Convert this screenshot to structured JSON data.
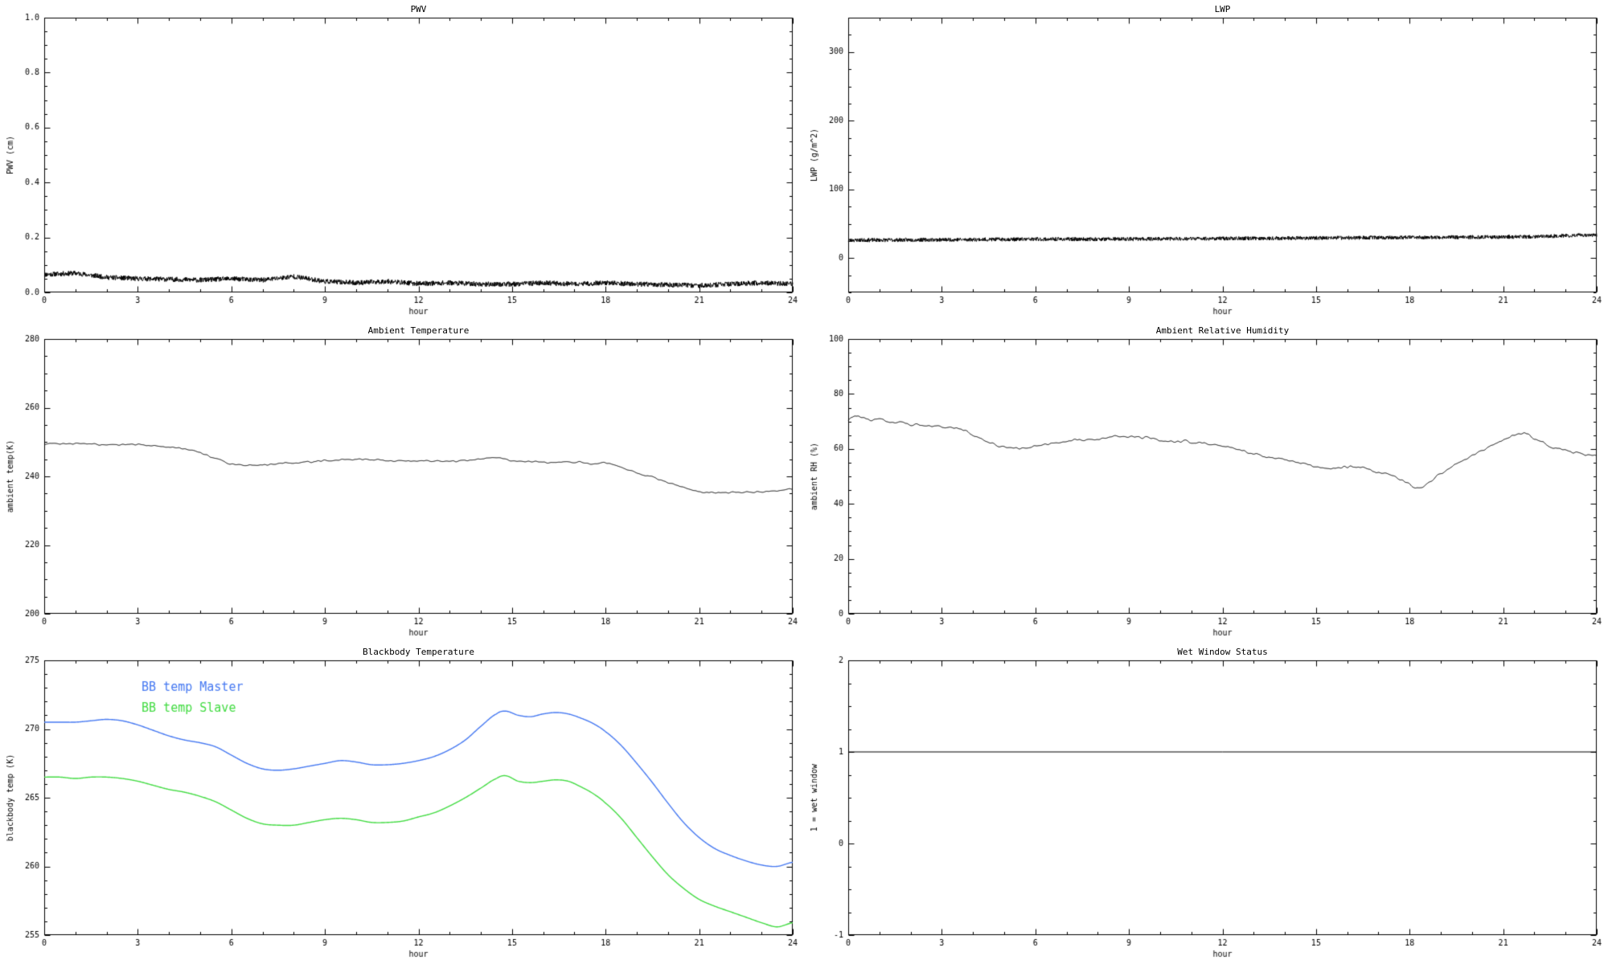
{
  "page": {
    "background": "#ffffff",
    "axis_color": "#000000"
  },
  "chart_data": [
    {
      "id": "pwv",
      "type": "line",
      "title": "PWV",
      "xlabel": "hour",
      "ylabel": "PWV (cm)",
      "xlim": [
        0,
        24
      ],
      "ylim": [
        0.0,
        1.0
      ],
      "xticks": [
        0,
        3,
        6,
        9,
        12,
        15,
        18,
        21,
        24
      ],
      "xtick_labels": [
        "0",
        "3",
        "6",
        "9",
        "12",
        "15",
        "18",
        "21",
        "24"
      ],
      "yticks": [
        0.0,
        0.2,
        0.4,
        0.6,
        0.8,
        1.0
      ],
      "ytick_labels": [
        "0.0",
        "0.2",
        "0.4",
        "0.6",
        "0.8",
        "1.0"
      ],
      "xminor_step": 1,
      "yminor_step": 0.05,
      "series": [
        {
          "name": "PWV",
          "color": "#000000",
          "width": 1,
          "seed": 11,
          "samples": 2400,
          "noise": 0.009,
          "noise_smooth": 0,
          "smooth_curve": false,
          "cx": [
            0,
            1,
            2,
            3,
            4,
            5,
            6,
            7,
            8,
            9,
            10,
            11,
            12,
            13,
            14,
            15,
            16,
            17,
            18,
            19,
            20,
            21,
            22,
            23,
            24
          ],
          "cy": [
            0.065,
            0.07,
            0.055,
            0.05,
            0.048,
            0.045,
            0.05,
            0.045,
            0.058,
            0.04,
            0.035,
            0.04,
            0.032,
            0.035,
            0.03,
            0.03,
            0.035,
            0.03,
            0.035,
            0.03,
            0.028,
            0.025,
            0.03,
            0.035,
            0.03
          ]
        }
      ]
    },
    {
      "id": "lwp",
      "type": "line",
      "title": "LWP",
      "xlabel": "hour",
      "ylabel": "LWP (g/m^2)",
      "xlim": [
        0,
        24
      ],
      "ylim": [
        -50,
        350
      ],
      "xticks": [
        0,
        3,
        6,
        9,
        12,
        15,
        18,
        21,
        24
      ],
      "xtick_labels": [
        "0",
        "3",
        "6",
        "9",
        "12",
        "15",
        "18",
        "21",
        "24"
      ],
      "yticks": [
        0,
        100,
        200,
        300
      ],
      "ytick_labels": [
        "0",
        "100",
        "200",
        "300"
      ],
      "xminor_step": 1,
      "yminor_step": 25,
      "series": [
        {
          "name": "LWP",
          "color": "#000000",
          "width": 1,
          "seed": 23,
          "samples": 2400,
          "noise": 2.8,
          "noise_smooth": 0,
          "smooth_curve": false,
          "cx": [
            0,
            2,
            4,
            6,
            8,
            10,
            12,
            14,
            16,
            18,
            20,
            22,
            24
          ],
          "cy": [
            26,
            26.5,
            27,
            27.5,
            27.5,
            28,
            28.5,
            29,
            29.5,
            30,
            30.5,
            31,
            34
          ]
        }
      ]
    },
    {
      "id": "ambient-temperature",
      "type": "line",
      "title": "Ambient Temperature",
      "xlabel": "hour",
      "ylabel": "ambient temp(K)",
      "xlim": [
        0,
        24
      ],
      "ylim": [
        200,
        280
      ],
      "xticks": [
        0,
        3,
        6,
        9,
        12,
        15,
        18,
        21,
        24
      ],
      "xtick_labels": [
        "0",
        "3",
        "6",
        "9",
        "12",
        "15",
        "18",
        "21",
        "24"
      ],
      "yticks": [
        200,
        220,
        240,
        260,
        280
      ],
      "ytick_labels": [
        "200",
        "220",
        "240",
        "260",
        "280"
      ],
      "xminor_step": 1,
      "yminor_step": 5,
      "series": [
        {
          "name": "ambient temp",
          "color": "#000000",
          "width": 1,
          "seed": 31,
          "samples": 1600,
          "noise": 0.6,
          "noise_smooth": 12,
          "smooth_curve": true,
          "cx": [
            0,
            1,
            2,
            3,
            4,
            4.5,
            5,
            5.5,
            6,
            6.5,
            7,
            8,
            9,
            10,
            11,
            12,
            13,
            14,
            14.5,
            15,
            16,
            17,
            17.5,
            18,
            18.5,
            19,
            19.5,
            20,
            20.5,
            21,
            21.5,
            22,
            22.5,
            23,
            23.5,
            24
          ],
          "cy": [
            249.5,
            249.5,
            249.3,
            249.2,
            248.6,
            248,
            246.8,
            245.2,
            243.6,
            243.2,
            243.4,
            244,
            244.6,
            245,
            244.6,
            244.5,
            244.4,
            245,
            245.6,
            244.6,
            244.2,
            244.2,
            243.6,
            243.8,
            242.6,
            241,
            239.8,
            238.2,
            236.8,
            235.6,
            235.2,
            235.4,
            235.4,
            235.5,
            235.8,
            236.4
          ]
        }
      ]
    },
    {
      "id": "ambient-relative-humidity",
      "type": "line",
      "title": "Ambient Relative Humidity",
      "xlabel": "hour",
      "ylabel": "ambient RH (%)",
      "xlim": [
        0,
        24
      ],
      "ylim": [
        0,
        100
      ],
      "xticks": [
        0,
        3,
        6,
        9,
        12,
        15,
        18,
        21,
        24
      ],
      "xtick_labels": [
        "0",
        "3",
        "6",
        "9",
        "12",
        "15",
        "18",
        "21",
        "24"
      ],
      "yticks": [
        0,
        20,
        40,
        60,
        80,
        100
      ],
      "ytick_labels": [
        "0",
        "20",
        "40",
        "60",
        "80",
        "100"
      ],
      "xminor_step": 1,
      "yminor_step": 5,
      "series": [
        {
          "name": "ambient RH",
          "color": "#000000",
          "width": 1,
          "seed": 47,
          "samples": 1600,
          "noise": 1.2,
          "noise_smooth": 12,
          "smooth_curve": true,
          "cx": [
            0,
            0.3,
            0.6,
            1,
            1.3,
            1.7,
            2,
            2.5,
            3,
            3.5,
            4,
            4.5,
            5,
            5.5,
            6,
            6.5,
            7,
            7.5,
            8,
            8.5,
            9,
            9.5,
            10,
            10.5,
            11,
            11.5,
            12,
            12.5,
            13,
            13.5,
            14,
            14.5,
            15,
            15.5,
            16,
            16.5,
            17,
            17.5,
            18,
            18.3,
            18.6,
            19,
            19.5,
            20,
            20.5,
            21,
            21.3,
            21.7,
            22,
            22.5,
            23,
            23.5,
            24
          ],
          "cy": [
            71,
            72,
            70.5,
            71,
            69.5,
            70,
            69,
            68.5,
            68,
            67.5,
            65,
            62.5,
            60.8,
            60.2,
            61,
            62,
            62.8,
            63.3,
            63.8,
            64.3,
            64.5,
            64.2,
            63.2,
            62.6,
            62.5,
            62,
            61,
            60,
            58.2,
            57,
            56,
            55,
            53.6,
            53,
            53.5,
            53,
            51.6,
            50,
            47,
            45.8,
            47.5,
            51,
            54.5,
            57.5,
            60.5,
            63,
            64.5,
            65.5,
            64,
            61,
            59.5,
            58.5,
            57.5
          ]
        }
      ]
    },
    {
      "id": "blackbody-temperature",
      "type": "line",
      "title": "Blackbody Temperature",
      "xlabel": "hour",
      "ylabel": "blackbody temp (K)",
      "xlim": [
        0,
        24
      ],
      "ylim": [
        255,
        275
      ],
      "xticks": [
        0,
        3,
        6,
        9,
        12,
        15,
        18,
        21,
        24
      ],
      "xtick_labels": [
        "0",
        "3",
        "6",
        "9",
        "12",
        "15",
        "18",
        "21",
        "24"
      ],
      "yticks": [
        255,
        260,
        265,
        270,
        275
      ],
      "ytick_labels": [
        "255",
        "260",
        "265",
        "270",
        "275"
      ],
      "xminor_step": 1,
      "yminor_step": 1,
      "legend": [
        {
          "label": "BB temp Master",
          "color": "#4679f2",
          "fx": 0.13,
          "fy": 0.1
        },
        {
          "label": "BB temp Slave",
          "color": "#43dc43",
          "fx": 0.13,
          "fy": 0.175
        }
      ],
      "series": [
        {
          "name": "BB temp Master",
          "color": "#4679f2",
          "width": 1.4,
          "seed": 5,
          "samples": 1200,
          "noise": 0,
          "noise_smooth": 0,
          "smooth_curve": true,
          "cx": [
            0,
            0.5,
            1,
            1.5,
            2,
            2.5,
            3,
            3.5,
            4,
            4.5,
            5,
            5.5,
            6,
            6.5,
            7,
            7.5,
            8,
            8.5,
            9,
            9.5,
            10,
            10.5,
            11,
            11.5,
            12,
            12.5,
            13,
            13.5,
            14,
            14.5,
            14.8,
            15.2,
            15.6,
            16,
            16.4,
            16.8,
            17.2,
            17.6,
            18,
            18.5,
            19,
            19.5,
            20,
            20.5,
            21,
            21.5,
            22,
            22.5,
            23,
            23.5,
            24
          ],
          "cy": [
            270.5,
            270.5,
            270.5,
            270.6,
            270.7,
            270.6,
            270.3,
            269.9,
            269.5,
            269.2,
            269,
            268.7,
            268.1,
            267.5,
            267.1,
            267,
            267.1,
            267.3,
            267.5,
            267.7,
            267.6,
            267.4,
            267.4,
            267.5,
            267.7,
            268,
            268.5,
            269.2,
            270.2,
            271.1,
            271.3,
            271,
            270.9,
            271.1,
            271.2,
            271.1,
            270.8,
            270.4,
            269.8,
            268.8,
            267.5,
            266.1,
            264.6,
            263.2,
            262.1,
            261.3,
            260.8,
            260.4,
            260.1,
            260,
            260.3
          ]
        },
        {
          "name": "BB temp Slave",
          "color": "#43dc43",
          "width": 1.4,
          "seed": 6,
          "samples": 1200,
          "noise": 0,
          "noise_smooth": 0,
          "smooth_curve": true,
          "cx": [
            0,
            0.5,
            1,
            1.5,
            2,
            2.5,
            3,
            3.5,
            4,
            4.5,
            5,
            5.5,
            6,
            6.5,
            7,
            7.5,
            8,
            8.5,
            9,
            9.5,
            10,
            10.5,
            11,
            11.5,
            12,
            12.5,
            13,
            13.5,
            14,
            14.5,
            14.8,
            15.2,
            15.6,
            16,
            16.4,
            16.8,
            17.2,
            17.6,
            18,
            18.5,
            19,
            19.5,
            20,
            20.5,
            21,
            21.5,
            22,
            22.5,
            23,
            23.5,
            24
          ],
          "cy": [
            266.5,
            266.5,
            266.4,
            266.5,
            266.5,
            266.4,
            266.2,
            265.9,
            265.6,
            265.4,
            265.1,
            264.7,
            264.1,
            263.5,
            263.1,
            263,
            263,
            263.2,
            263.4,
            263.5,
            263.4,
            263.2,
            263.2,
            263.3,
            263.6,
            263.9,
            264.4,
            265,
            265.7,
            266.4,
            266.6,
            266.2,
            266.1,
            266.2,
            266.3,
            266.2,
            265.8,
            265.3,
            264.6,
            263.5,
            262.1,
            260.7,
            259.4,
            258.4,
            257.6,
            257.1,
            256.7,
            256.3,
            255.9,
            255.6,
            255.9
          ]
        }
      ]
    },
    {
      "id": "wet-window-status",
      "type": "line",
      "title": "Wet Window Status",
      "xlabel": "hour",
      "ylabel": "1 = wet window",
      "xlim": [
        0,
        24
      ],
      "ylim": [
        -1,
        2
      ],
      "xticks": [
        0,
        3,
        6,
        9,
        12,
        15,
        18,
        21,
        24
      ],
      "xtick_labels": [
        "0",
        "3",
        "6",
        "9",
        "12",
        "15",
        "18",
        "21",
        "24"
      ],
      "yticks": [
        -1,
        0,
        1,
        2
      ],
      "ytick_labels": [
        "-1",
        "0",
        "1",
        "2"
      ],
      "xminor_step": 1,
      "yminor_step": 0.25,
      "series": [
        {
          "name": "wet window flag",
          "color": "#000000",
          "width": 1,
          "seed": 1,
          "samples": 2,
          "noise": 0,
          "noise_smooth": 0,
          "smooth_curve": false,
          "cx": [
            0,
            24
          ],
          "cy": [
            1,
            1
          ]
        }
      ]
    }
  ]
}
